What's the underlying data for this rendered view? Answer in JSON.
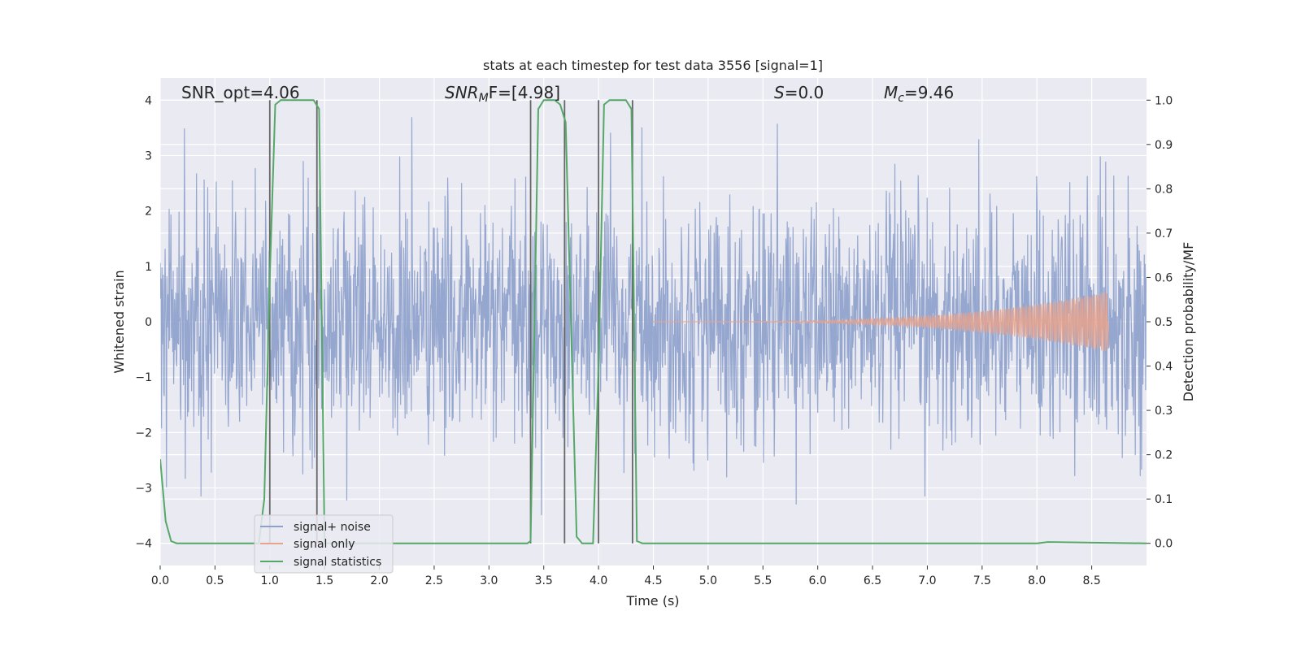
{
  "chart_data": {
    "type": "line",
    "title": "stats at each timestep for test data 3556 [signal=1]",
    "xlabel": "Time (s)",
    "ylabel": "Whitened strain",
    "y2label": "Detection probability/MF",
    "xlim": [
      0.0,
      9.0
    ],
    "ylim": [
      -4.4,
      4.4
    ],
    "y2lim": [
      -0.05,
      1.05
    ],
    "x_ticks": [
      "0.0",
      "0.5",
      "1.0",
      "1.5",
      "2.0",
      "2.5",
      "3.0",
      "3.5",
      "4.0",
      "4.5",
      "5.0",
      "5.5",
      "6.0",
      "6.5",
      "7.0",
      "7.5",
      "8.0",
      "8.5"
    ],
    "y_ticks": [
      "−4",
      "−3",
      "−2",
      "−1",
      "0",
      "1",
      "2",
      "3",
      "4"
    ],
    "y2_ticks": [
      "0.0",
      "0.1",
      "0.2",
      "0.3",
      "0.4",
      "0.5",
      "0.6",
      "0.7",
      "0.8",
      "0.9",
      "1.0"
    ],
    "grid": true,
    "legend_position": "lower-left",
    "annotations": {
      "snr_opt": "SNR_opt=4.06",
      "snr_mf_base": "SNR",
      "snr_mf_sub": "M",
      "snr_mf_rest": "F=[4.98]",
      "s_sym": "S",
      "s_val": "=0.0",
      "mc_sym": "M",
      "mc_sub": "c",
      "mc_val": "=9.46"
    },
    "series": [
      {
        "name": "signal+ noise",
        "color": "#8da0cb",
        "kind": "noise",
        "std": 1.05,
        "x_range": [
          0.0,
          9.0
        ]
      },
      {
        "name": "signal only",
        "color": "#e6a38d",
        "kind": "chirp",
        "x_range": [
          4.5,
          8.65
        ],
        "peak_amplitude": 0.55
      },
      {
        "name": "signal statistics",
        "color": "#55a868",
        "axis": "right",
        "x": [
          0.0,
          0.05,
          0.1,
          0.15,
          0.9,
          0.95,
          1.0,
          1.05,
          1.1,
          1.4,
          1.45,
          1.5,
          3.35,
          3.38,
          3.45,
          3.5,
          3.55,
          3.6,
          3.65,
          3.7,
          3.8,
          3.85,
          3.9,
          3.95,
          4.0,
          4.05,
          4.1,
          4.25,
          4.3,
          4.35,
          4.4,
          8.0,
          8.1,
          9.0
        ],
        "y": [
          0.19,
          0.05,
          0.005,
          0.0,
          0.0,
          0.1,
          0.6,
          0.99,
          1.0,
          1.0,
          0.98,
          0.0,
          0.0,
          0.005,
          0.98,
          1.0,
          1.0,
          1.0,
          0.99,
          0.95,
          0.015,
          0.0,
          0.0,
          0.0,
          0.4,
          0.99,
          1.0,
          1.0,
          0.98,
          0.005,
          0.0,
          0.0,
          0.003,
          0.0
        ]
      }
    ],
    "vertical_markers": [
      1.0,
      1.43,
      3.38,
      3.69,
      4.0,
      4.31
    ]
  }
}
